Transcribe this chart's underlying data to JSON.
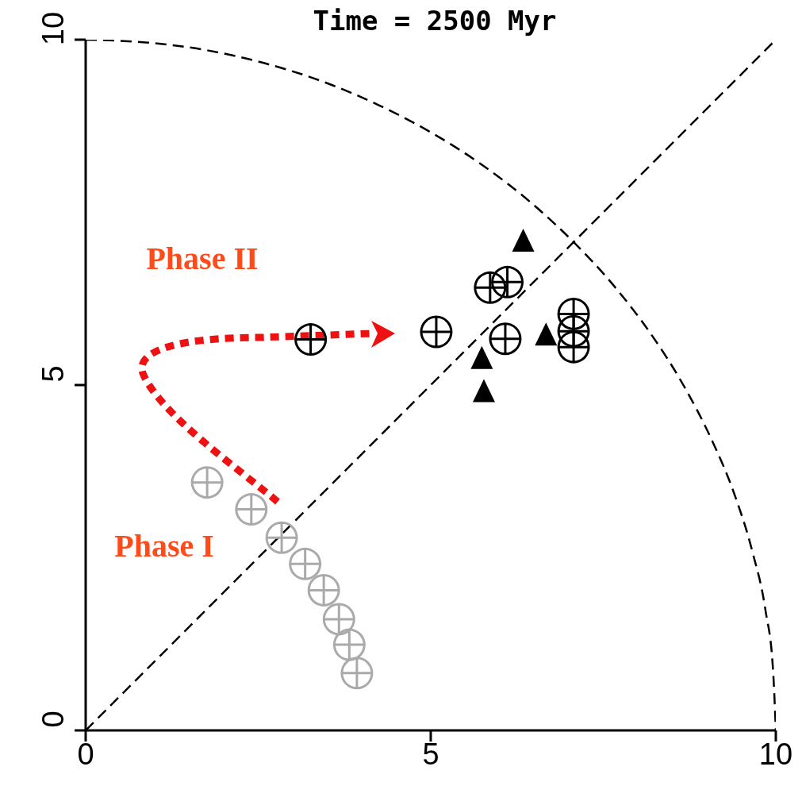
{
  "chart_data": {
    "type": "scatter",
    "title": "Time = 2500 Myr",
    "xlim": [
      0,
      10
    ],
    "ylim": [
      0,
      10
    ],
    "xticks": [
      0,
      5,
      10
    ],
    "yticks": [
      0,
      5,
      10
    ],
    "annotations": [
      "Phase II",
      {
        "text": "Phase I",
        "x": 2.84,
        "y": 2.79
      }
    ],
    "series": [
      {
        "type": "line",
        "color": "#000000",
        "line_style": "dashed",
        "marker": "none",
        "x": [
          0,
          10
        ],
        "values": [
          0,
          10
        ]
      },
      {
        "type": "line",
        "color": "#000000",
        "line_style": "dashed",
        "marker": "none",
        "x": [
          0,
          0.87,
          1.74,
          2.59,
          3.42,
          4.23,
          5,
          5.74,
          6.43,
          7.07,
          7.66,
          8.19,
          8.66,
          9.06,
          9.4,
          9.66,
          9.85,
          9.96,
          10
        ],
        "values": [
          10,
          9.96,
          9.85,
          9.66,
          9.4,
          9.06,
          8.66,
          8.19,
          7.66,
          7.07,
          6.43,
          5.74,
          5,
          4.23,
          3.42,
          2.59,
          1.74,
          0.87,
          0
        ]
      },
      {
        "color": "#aaaaaa",
        "marker": "circle",
        "x": [
          1.76,
          2.4,
          2.84,
          3.18,
          3.45,
          3.67,
          3.82,
          3.93
        ],
        "values": [
          3.59,
          3.2,
          2.79,
          2.41,
          2.03,
          1.61,
          1.24,
          0.83
        ]
      },
      {
        "color": "#000000",
        "marker": "triangle",
        "x": [
          6.34,
          5.74,
          5.77,
          6.67
        ],
        "values": [
          7.07,
          5.37,
          4.89,
          5.71
        ]
      },
      {
        "color": "#000000",
        "marker": "circle",
        "x": [
          3.26,
          5.08,
          5.86,
          6.11,
          6.08,
          7.07,
          7.07,
          7.07
        ],
        "values": [
          5.66,
          5.77,
          6.41,
          6.49,
          5.67,
          6.03,
          5.78,
          5.55
        ]
      }
    ]
  }
}
